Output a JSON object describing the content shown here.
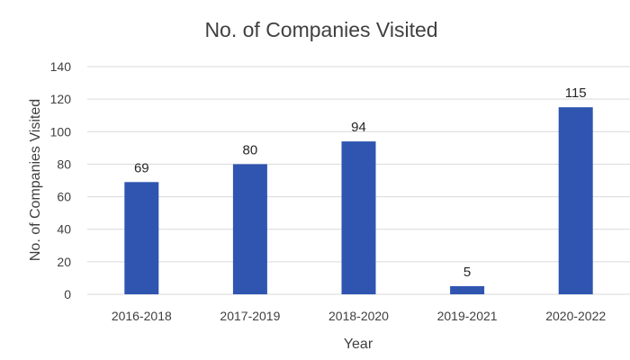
{
  "chart_data": {
    "type": "bar",
    "title": "No. of Companies Visited",
    "xlabel": "Year",
    "ylabel": "No. of  Companies  Visited",
    "categories": [
      "2016-2018",
      "2017-2019",
      "2018-2020",
      "2019-2021",
      "2020-2022"
    ],
    "values": [
      69,
      80,
      94,
      5,
      115
    ],
    "data_labels": [
      "69",
      "80",
      "94",
      "5",
      "115"
    ],
    "ylim": [
      0,
      140
    ],
    "yticks": [
      0,
      20,
      40,
      60,
      80,
      100,
      120,
      140
    ],
    "grid": true,
    "legend": "none",
    "bar_color": "#2f55b1"
  }
}
